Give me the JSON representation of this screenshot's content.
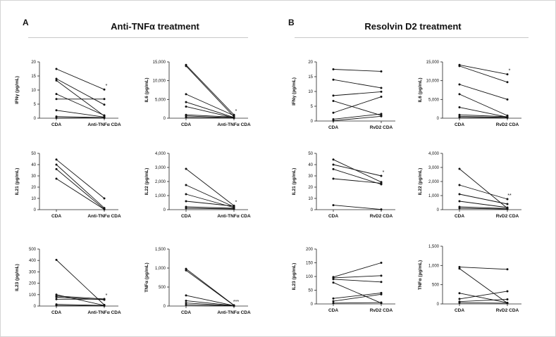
{
  "panels": [
    {
      "letter": "A",
      "title": "Anti-TNFα treatment"
    },
    {
      "letter": "B",
      "title": "Resolvin D2 treatment"
    }
  ],
  "chart_data": [
    {
      "id": "A-IFN",
      "type": "line",
      "ylabel": "IFNγ (pg/mL)",
      "ylim": [
        0,
        20
      ],
      "yticks": [
        0,
        5,
        10,
        15,
        20
      ],
      "ytick_labels": [
        "0",
        "5",
        "10",
        "15",
        "20"
      ],
      "categories": [
        "CDA",
        "Anti-TNFα CDA"
      ],
      "significance": "*",
      "series": [
        {
          "values": [
            17.5,
            10.2
          ]
        },
        {
          "values": [
            14.0,
            4.8
          ]
        },
        {
          "values": [
            13.4,
            0.8
          ]
        },
        {
          "values": [
            8.6,
            1.0
          ]
        },
        {
          "values": [
            6.8,
            6.8
          ]
        },
        {
          "values": [
            2.8,
            0.4
          ]
        },
        {
          "values": [
            0.6,
            0.2
          ]
        },
        {
          "values": [
            0.1,
            0.1
          ]
        }
      ]
    },
    {
      "id": "A-IL6",
      "type": "line",
      "ylabel": "IL6 (pg/mL)",
      "ylim": [
        0,
        15000
      ],
      "yticks": [
        0,
        5000,
        10000,
        15000
      ],
      "ytick_labels": [
        "0",
        "5,000",
        "10,000",
        "15,000"
      ],
      "categories": [
        "CDA",
        "Anti-TNFα CDA"
      ],
      "significance": "*",
      "series": [
        {
          "values": [
            14200,
            900
          ]
        },
        {
          "values": [
            13900,
            400
          ]
        },
        {
          "values": [
            6400,
            700
          ]
        },
        {
          "values": [
            4300,
            200
          ]
        },
        {
          "values": [
            3100,
            100
          ]
        },
        {
          "values": [
            900,
            300
          ]
        },
        {
          "values": [
            600,
            100
          ]
        },
        {
          "values": [
            200,
            50
          ]
        }
      ]
    },
    {
      "id": "A-IL21",
      "type": "line",
      "ylabel": "IL21 (pg/mL)",
      "ylim": [
        0,
        50
      ],
      "yticks": [
        0,
        10,
        20,
        30,
        40,
        50
      ],
      "ytick_labels": [
        "0",
        "10",
        "20",
        "30",
        "40",
        "50"
      ],
      "categories": [
        "CDA",
        "Anti-TNFα CDA"
      ],
      "significance": "",
      "series": [
        {
          "values": [
            44.5,
            10.0
          ]
        },
        {
          "values": [
            40.0,
            1.5
          ]
        },
        {
          "values": [
            36.0,
            0.5
          ]
        },
        {
          "values": [
            27.5,
            0.2
          ]
        }
      ]
    },
    {
      "id": "A-IL22",
      "type": "line",
      "ylabel": "IL22 (pg/mL)",
      "ylim": [
        0,
        4000
      ],
      "yticks": [
        0,
        1000,
        2000,
        3000,
        4000
      ],
      "ytick_labels": [
        "0",
        "1,000",
        "2,000",
        "3,000",
        "4,000"
      ],
      "categories": [
        "CDA",
        "Anti-TNFα CDA"
      ],
      "significance": "*",
      "series": [
        {
          "values": [
            2900,
            280
          ]
        },
        {
          "values": [
            1750,
            200
          ]
        },
        {
          "values": [
            1100,
            150
          ]
        },
        {
          "values": [
            600,
            250
          ]
        },
        {
          "values": [
            200,
            100
          ]
        },
        {
          "values": [
            100,
            50
          ]
        }
      ]
    },
    {
      "id": "A-IL23",
      "type": "line",
      "ylabel": "IL23 (pg/mL)",
      "ylim": [
        0,
        500
      ],
      "yticks": [
        0,
        100,
        200,
        300,
        400,
        500
      ],
      "ytick_labels": [
        "0",
        "100",
        "200",
        "300",
        "400",
        "500"
      ],
      "categories": [
        "CDA",
        "Anti-TNFα CDA"
      ],
      "significance": "*",
      "series": [
        {
          "values": [
            405,
            10
          ]
        },
        {
          "values": [
            100,
            5
          ]
        },
        {
          "values": [
            88,
            62
          ]
        },
        {
          "values": [
            78,
            55
          ]
        },
        {
          "values": [
            60,
            60
          ]
        },
        {
          "values": [
            15,
            5
          ]
        },
        {
          "values": [
            5,
            2
          ]
        }
      ]
    },
    {
      "id": "A-TNF",
      "type": "line",
      "ylabel": "TNFα (pg/mL)",
      "ylim": [
        0,
        1500
      ],
      "yticks": [
        0,
        500,
        1000,
        1500
      ],
      "ytick_labels": [
        "0",
        "500",
        "1,000",
        "1,500"
      ],
      "categories": [
        "CDA",
        "Anti-TNFα CDA"
      ],
      "significance": "***",
      "series": [
        {
          "values": [
            980,
            20
          ]
        },
        {
          "values": [
            940,
            15
          ]
        },
        {
          "values": [
            280,
            10
          ]
        },
        {
          "values": [
            140,
            10
          ]
        },
        {
          "values": [
            80,
            5
          ]
        },
        {
          "values": [
            30,
            5
          ]
        }
      ]
    },
    {
      "id": "B-IFN",
      "type": "line",
      "ylabel": "IFNγ (pg/mL)",
      "ylim": [
        0,
        20
      ],
      "yticks": [
        0,
        5,
        10,
        15,
        20
      ],
      "ytick_labels": [
        "0",
        "5",
        "10",
        "15",
        "20"
      ],
      "categories": [
        "CDA",
        "RvD2 CDA"
      ],
      "significance": "",
      "series": [
        {
          "values": [
            17.5,
            16.8
          ]
        },
        {
          "values": [
            14.0,
            11.2
          ]
        },
        {
          "values": [
            8.6,
            9.9
          ]
        },
        {
          "values": [
            6.8,
            1.9
          ]
        },
        {
          "values": [
            2.8,
            8.2
          ]
        },
        {
          "values": [
            0.6,
            2.4
          ]
        },
        {
          "values": [
            0.1,
            1.6
          ]
        }
      ]
    },
    {
      "id": "B-IL6",
      "type": "line",
      "ylabel": "IL6 (pg/mL)",
      "ylim": [
        0,
        15000
      ],
      "yticks": [
        0,
        5000,
        10000,
        15000
      ],
      "ytick_labels": [
        "0",
        "5,000",
        "10,000",
        "15,000"
      ],
      "categories": [
        "CDA",
        "RvD2 CDA"
      ],
      "significance": "*",
      "series": [
        {
          "values": [
            14200,
            11700
          ]
        },
        {
          "values": [
            13900,
            9600
          ]
        },
        {
          "values": [
            9000,
            5000
          ]
        },
        {
          "values": [
            6400,
            700
          ]
        },
        {
          "values": [
            2900,
            300
          ]
        },
        {
          "values": [
            900,
            400
          ]
        },
        {
          "values": [
            500,
            200
          ]
        },
        {
          "values": [
            200,
            100
          ]
        }
      ]
    },
    {
      "id": "B-IL21",
      "type": "line",
      "ylabel": "IL21 (pg/mL)",
      "ylim": [
        0,
        50
      ],
      "yticks": [
        0,
        10,
        20,
        30,
        40,
        50
      ],
      "ytick_labels": [
        "0",
        "10",
        "20",
        "30",
        "40",
        "50"
      ],
      "categories": [
        "CDA",
        "RvD2 CDA"
      ],
      "significance": "*",
      "series": [
        {
          "values": [
            44.5,
            24.5
          ]
        },
        {
          "values": [
            40.0,
            30.0
          ]
        },
        {
          "values": [
            36.0,
            22.5
          ]
        },
        {
          "values": [
            27.5,
            23.5
          ]
        },
        {
          "values": [
            4.0,
            0.2
          ]
        }
      ]
    },
    {
      "id": "B-IL22",
      "type": "line",
      "ylabel": "IL22 (pg/mL)",
      "ylim": [
        0,
        4000
      ],
      "yticks": [
        0,
        1000,
        2000,
        3000,
        4000
      ],
      "ytick_labels": [
        "0",
        "1,000",
        "2,000",
        "3,000",
        "4,000"
      ],
      "categories": [
        "CDA",
        "RvD2 CDA"
      ],
      "significance": "**",
      "series": [
        {
          "values": [
            2900,
            100
          ]
        },
        {
          "values": [
            1750,
            750
          ]
        },
        {
          "values": [
            1100,
            400
          ]
        },
        {
          "values": [
            600,
            150
          ]
        },
        {
          "values": [
            200,
            80
          ]
        },
        {
          "values": [
            100,
            40
          ]
        }
      ]
    },
    {
      "id": "B-IL23",
      "type": "line",
      "ylabel": "IL23 (pg/mL)",
      "ylim": [
        0,
        200
      ],
      "yticks": [
        0,
        50,
        100,
        150,
        200
      ],
      "ytick_labels": [
        "0",
        "50",
        "100",
        "150",
        "200"
      ],
      "categories": [
        "CDA",
        "RvD2 CDA"
      ],
      "significance": "",
      "series": [
        {
          "values": [
            98,
            150
          ]
        },
        {
          "values": [
            95,
            103
          ]
        },
        {
          "values": [
            90,
            80
          ]
        },
        {
          "values": [
            78,
            3
          ]
        },
        {
          "values": [
            20,
            40
          ]
        },
        {
          "values": [
            10,
            35
          ]
        },
        {
          "values": [
            3,
            5
          ]
        }
      ]
    },
    {
      "id": "B-TNF",
      "type": "line",
      "ylabel": "TNFα (pg/mL)",
      "ylim": [
        0,
        1500
      ],
      "yticks": [
        0,
        500,
        1000,
        1500
      ],
      "ytick_labels": [
        "0",
        "500",
        "1,000",
        "1,500"
      ],
      "categories": [
        "CDA",
        "RvD2 CDA"
      ],
      "significance": "",
      "series": [
        {
          "values": [
            960,
            900
          ]
        },
        {
          "values": [
            920,
            20
          ]
        },
        {
          "values": [
            280,
            30
          ]
        },
        {
          "values": [
            130,
            330
          ]
        },
        {
          "values": [
            60,
            120
          ]
        },
        {
          "values": [
            30,
            20
          ]
        }
      ]
    }
  ]
}
